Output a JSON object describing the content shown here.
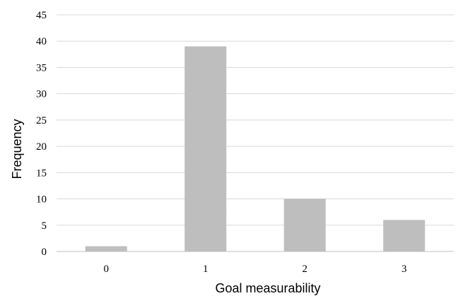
{
  "chart_data": {
    "type": "bar",
    "title": "",
    "xlabel": "Goal measurability",
    "ylabel": "Frequency",
    "categories": [
      "0",
      "1",
      "2",
      "3"
    ],
    "values": [
      1,
      39,
      10,
      6
    ],
    "ylim": [
      0,
      45
    ],
    "yticks": [
      "0",
      "5",
      "10",
      "15",
      "20",
      "25",
      "30",
      "35",
      "40",
      "45"
    ],
    "grid": true,
    "legend": "none",
    "colors": {
      "bar": "#bfbebe",
      "grid": "#d9d9d9",
      "axis": "#bfbfbf"
    }
  }
}
